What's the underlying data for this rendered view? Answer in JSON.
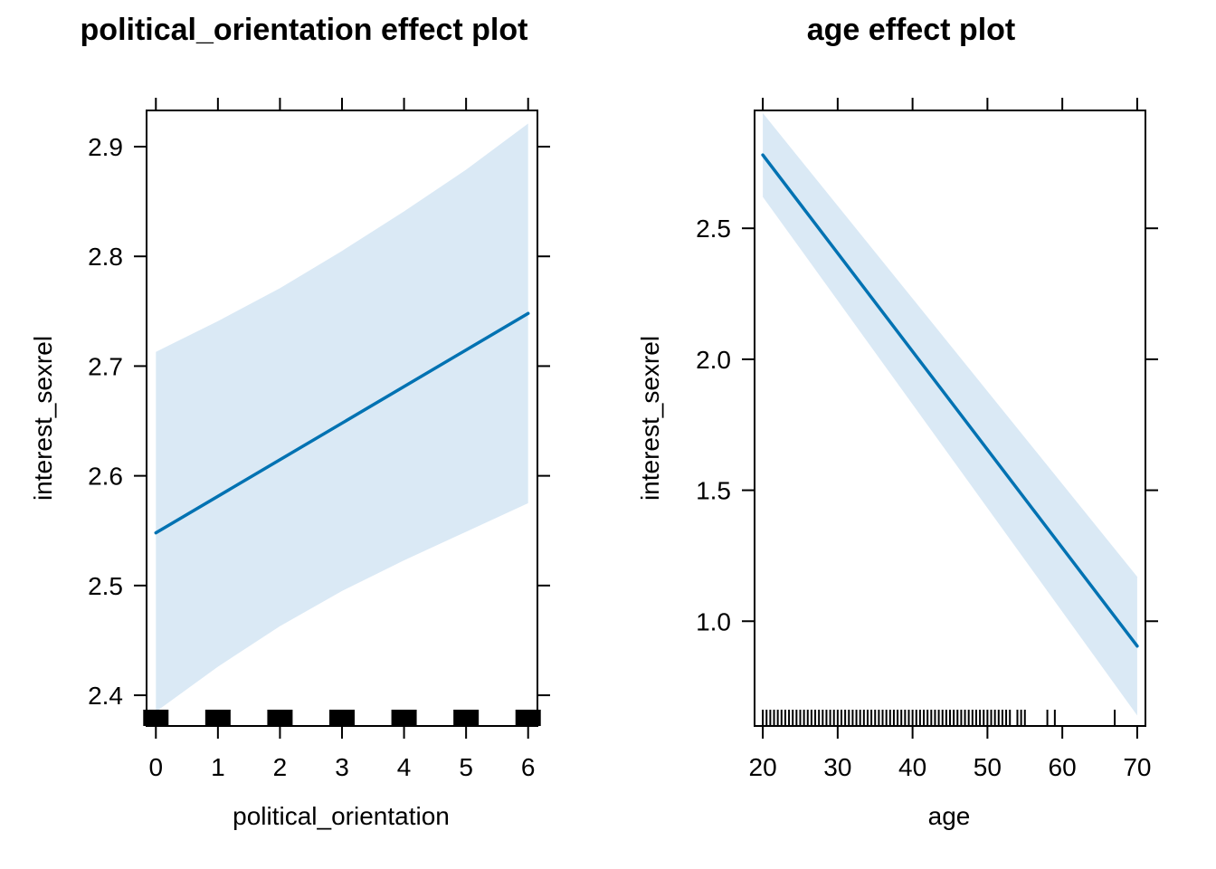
{
  "chart_data": [
    {
      "type": "line",
      "title": "political_orientation effect plot",
      "xlabel": "political_orientation",
      "ylabel": "interest_sexrel",
      "xlim": [
        -0.15,
        6.15
      ],
      "ylim": [
        2.372,
        2.933
      ],
      "x_ticks": [
        0,
        1,
        2,
        3,
        4,
        5,
        6
      ],
      "y_ticks": [
        2.4,
        2.5,
        2.6,
        2.7,
        2.8,
        2.9
      ],
      "y_tick_labels": [
        "2.4",
        "2.5",
        "2.6",
        "2.7",
        "2.8",
        "2.9"
      ],
      "x_tick_labels": [
        "0",
        "1",
        "2",
        "3",
        "4",
        "5",
        "6"
      ],
      "fit": {
        "x": [
          0,
          6
        ],
        "y": [
          2.548,
          2.748
        ]
      },
      "ci_band": {
        "x": [
          0,
          1,
          2,
          3,
          4,
          5,
          6
        ],
        "upper": [
          2.713,
          2.741,
          2.771,
          2.805,
          2.841,
          2.879,
          2.921
        ],
        "lower": [
          2.385,
          2.426,
          2.463,
          2.495,
          2.523,
          2.549,
          2.575
        ]
      },
      "rug": [
        0,
        1,
        2,
        3,
        4,
        5,
        6
      ],
      "grid": false,
      "colors": {
        "line": "#0072B2",
        "band": "#DAE9F5",
        "rug": "#000000"
      }
    },
    {
      "type": "line",
      "title": "age effect plot",
      "xlabel": "age",
      "ylabel": "interest_sexrel",
      "xlim": [
        18.9,
        71.1
      ],
      "ylim": [
        0.6,
        2.95
      ],
      "x_ticks": [
        20,
        30,
        40,
        50,
        60,
        70
      ],
      "y_ticks": [
        1.0,
        1.5,
        2.0,
        2.5
      ],
      "y_tick_labels": [
        "1.0",
        "1.5",
        "2.0",
        "2.5"
      ],
      "x_tick_labels": [
        "20",
        "30",
        "40",
        "50",
        "60",
        "70"
      ],
      "fit": {
        "x": [
          20,
          70
        ],
        "y": [
          2.78,
          0.905
        ]
      },
      "ci_band": {
        "x": [
          20,
          70
        ],
        "upper": [
          2.94,
          1.17
        ],
        "lower": [
          2.62,
          0.64
        ]
      },
      "rug": [
        20,
        20.5,
        21,
        21.5,
        22,
        22.5,
        23,
        23.5,
        24,
        24.5,
        25,
        25.5,
        26,
        26.5,
        27,
        27.5,
        28,
        28.5,
        29,
        29.5,
        30,
        30.5,
        31,
        31.5,
        32,
        32.5,
        33,
        33.5,
        34,
        34.5,
        35,
        35.5,
        36,
        36.5,
        37,
        37.5,
        38,
        38.5,
        39,
        39.5,
        40,
        40.5,
        41,
        41.5,
        42,
        42.5,
        43,
        43.5,
        44,
        44.5,
        45,
        45.5,
        46,
        46.5,
        47,
        47.5,
        48,
        48.5,
        49,
        49.5,
        50,
        50.5,
        51,
        51.5,
        52,
        52.5,
        53,
        54,
        54.5,
        55,
        58,
        59,
        67
      ],
      "grid": false,
      "colors": {
        "line": "#0072B2",
        "band": "#DAE9F5",
        "rug": "#000000"
      }
    }
  ]
}
